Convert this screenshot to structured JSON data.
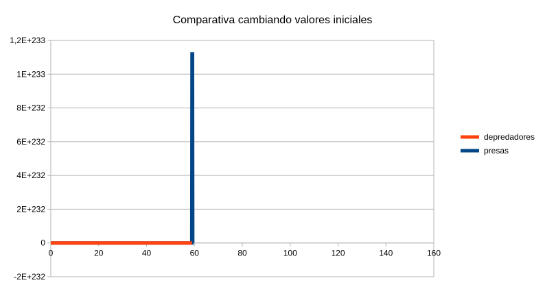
{
  "chart_data": {
    "type": "line",
    "title": "Comparativa cambiando valores iniciales",
    "xlabel": "",
    "ylabel": "",
    "xlim": [
      0,
      160
    ],
    "ylim": [
      -2e+232,
      1.2e+233
    ],
    "x_ticks": [
      {
        "value": 0,
        "label": "0"
      },
      {
        "value": 20,
        "label": "20"
      },
      {
        "value": 40,
        "label": "40"
      },
      {
        "value": 60,
        "label": "60"
      },
      {
        "value": 80,
        "label": "80"
      },
      {
        "value": 100,
        "label": "100"
      },
      {
        "value": 120,
        "label": "120"
      },
      {
        "value": 140,
        "label": "140"
      },
      {
        "value": 160,
        "label": "160"
      }
    ],
    "y_ticks": [
      {
        "value": 1.2e+233,
        "label": "1,2E+233"
      },
      {
        "value": 1e+233,
        "label": "1E+233"
      },
      {
        "value": 8e+232,
        "label": "8E+232"
      },
      {
        "value": 6e+232,
        "label": "6E+232"
      },
      {
        "value": 4e+232,
        "label": "4E+232"
      },
      {
        "value": 2e+232,
        "label": "2E+232"
      },
      {
        "value": 0,
        "label": "0"
      },
      {
        "value": -2e+232,
        "label": "-2E+232"
      }
    ],
    "grid": true,
    "legend_position": "right",
    "series": [
      {
        "name": "depredadores",
        "color": "#ff420e",
        "points": [
          [
            0,
            0
          ],
          [
            59,
            0
          ]
        ]
      },
      {
        "name": "presas",
        "color": "#004586",
        "points": [
          [
            0,
            0
          ],
          [
            58.9,
            0
          ],
          [
            59,
            1.12e+233
          ],
          [
            59.2,
            1.12e+233
          ],
          [
            59.3,
            0
          ]
        ]
      }
    ]
  }
}
